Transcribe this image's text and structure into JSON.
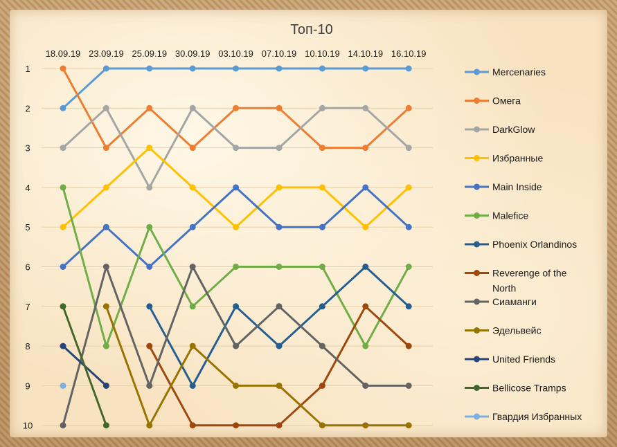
{
  "chart_data": {
    "type": "line",
    "title": "Топ-10",
    "xlabel": "",
    "ylabel": "",
    "categories": [
      "18.09.19",
      "23.09.19",
      "25.09.19",
      "30.09.19",
      "03.10.19",
      "07.10.19",
      "10.10.19",
      "14.10.19",
      "16.10.19"
    ],
    "ylim": [
      1,
      10
    ],
    "y_reversed": true,
    "y_ticks": [
      "1",
      "2",
      "3",
      "4",
      "5",
      "6",
      "7",
      "8",
      "9",
      "10"
    ],
    "grid": true,
    "legend_position": "right",
    "series": [
      {
        "name": "Mercenaries",
        "color": "#5B9BD5",
        "values": [
          2,
          1,
          1,
          1,
          1,
          1,
          1,
          1,
          1
        ]
      },
      {
        "name": "Омега",
        "color": "#ED7D31",
        "values": [
          1,
          3,
          2,
          3,
          2,
          2,
          3,
          3,
          2
        ]
      },
      {
        "name": "DarkGlow",
        "color": "#A5A5A5",
        "values": [
          3,
          2,
          4,
          2,
          3,
          3,
          2,
          2,
          3
        ]
      },
      {
        "name": "Избранные",
        "color": "#FFC000",
        "values": [
          5,
          4,
          3,
          4,
          5,
          4,
          4,
          5,
          4
        ]
      },
      {
        "name": "Main Inside",
        "color": "#4472C4",
        "values": [
          6,
          5,
          6,
          5,
          4,
          5,
          5,
          4,
          5
        ]
      },
      {
        "name": "Malefice",
        "color": "#70AD47",
        "values": [
          4,
          8,
          5,
          7,
          6,
          6,
          6,
          8,
          6
        ]
      },
      {
        "name": "Phoenix Orlandinos",
        "color": "#255E91",
        "values": [
          null,
          null,
          7,
          9,
          7,
          8,
          7,
          6,
          7
        ]
      },
      {
        "name": "Reverenge of the North",
        "color": "#9E480E",
        "values": [
          null,
          null,
          8,
          10,
          10,
          10,
          9,
          7,
          8
        ]
      },
      {
        "name": "Сиаманги",
        "color": "#636363",
        "values": [
          10,
          6,
          9,
          6,
          8,
          7,
          8,
          9,
          9
        ]
      },
      {
        "name": "Эдельвейс",
        "color": "#997300",
        "values": [
          null,
          7,
          10,
          8,
          9,
          9,
          10,
          10,
          10
        ]
      },
      {
        "name": "United Friends",
        "color": "#264478",
        "values": [
          8,
          9,
          null,
          null,
          null,
          null,
          null,
          null,
          null
        ]
      },
      {
        "name": "Bellicose Tramps",
        "color": "#43682B",
        "values": [
          7,
          10,
          null,
          null,
          null,
          null,
          null,
          null,
          null
        ]
      },
      {
        "name": "Гвардия Избранных",
        "color": "#7CAFDD",
        "values": [
          9,
          null,
          null,
          null,
          null,
          null,
          null,
          null,
          null
        ]
      }
    ]
  }
}
